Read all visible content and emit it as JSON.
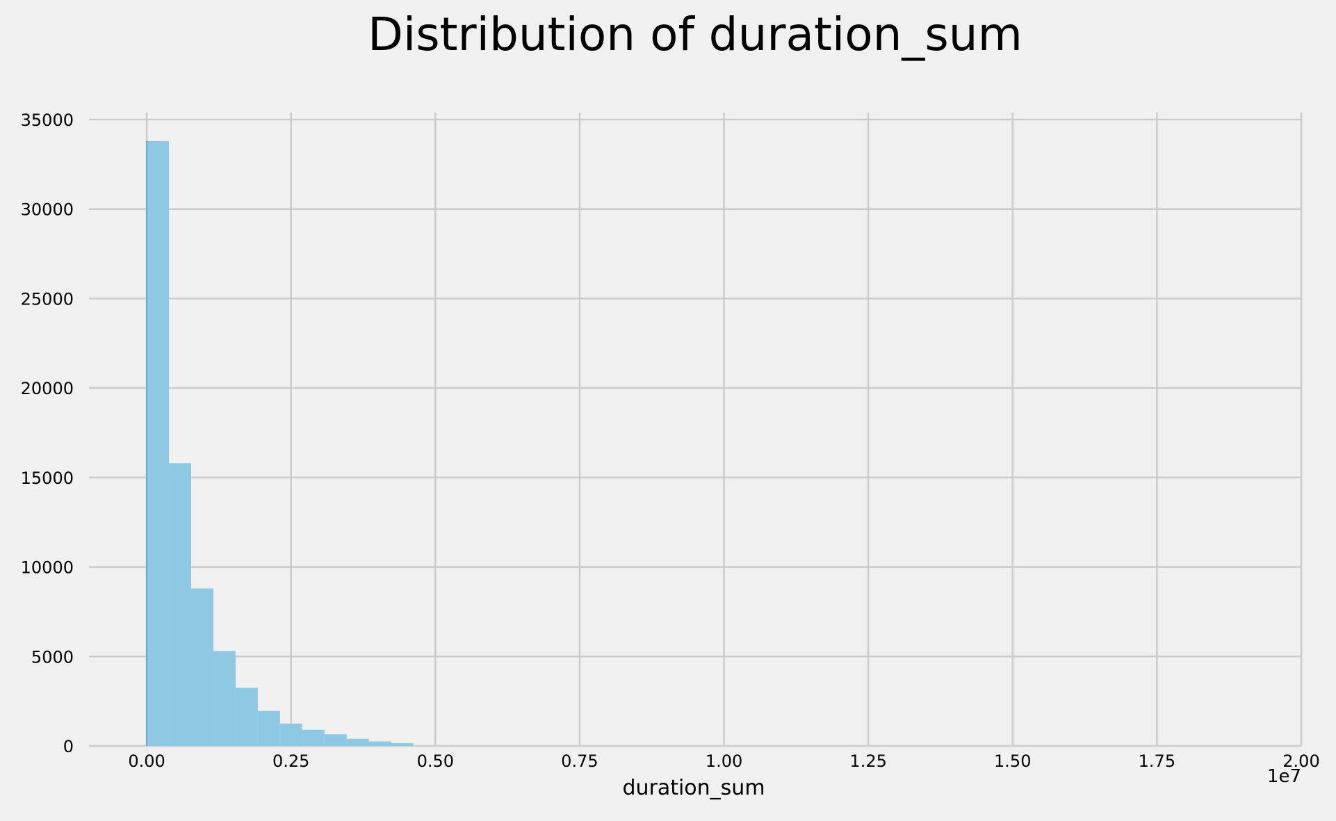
{
  "chart_data": {
    "type": "bar",
    "title": "Distribution of duration_sum",
    "xlabel": "duration_sum",
    "ylabel": "",
    "x_offset_label": "1e7",
    "xlim": [
      -0.1,
      2.0
    ],
    "ylim": [
      0,
      35000
    ],
    "x_ticks": [
      {
        "value": 0.0,
        "label": "0.00"
      },
      {
        "value": 0.25,
        "label": "0.25"
      },
      {
        "value": 0.5,
        "label": "0.50"
      },
      {
        "value": 0.75,
        "label": "0.75"
      },
      {
        "value": 1.0,
        "label": "1.00"
      },
      {
        "value": 1.25,
        "label": "1.25"
      },
      {
        "value": 1.5,
        "label": "1.50"
      },
      {
        "value": 1.75,
        "label": "1.75"
      },
      {
        "value": 2.0,
        "label": "2.00"
      }
    ],
    "y_ticks": [
      {
        "value": 0,
        "label": "0"
      },
      {
        "value": 5000,
        "label": "5000"
      },
      {
        "value": 10000,
        "label": "10000"
      },
      {
        "value": 15000,
        "label": "15000"
      },
      {
        "value": 20000,
        "label": "20000"
      },
      {
        "value": 25000,
        "label": "25000"
      },
      {
        "value": 30000,
        "label": "30000"
      },
      {
        "value": 35000,
        "label": "35000"
      }
    ],
    "grid": true,
    "bar_color": "#8fc8e5",
    "bar_edge_color": "#6aa6c8",
    "background_color": "#f0f0f0",
    "grid_color": "#cbcbcb",
    "bin_width": 0.0385,
    "bins": [
      {
        "x0": 0.0,
        "count": 33800
      },
      {
        "x0": 0.0385,
        "count": 15800
      },
      {
        "x0": 0.077,
        "count": 8800
      },
      {
        "x0": 0.1155,
        "count": 5300
      },
      {
        "x0": 0.154,
        "count": 3250
      },
      {
        "x0": 0.1925,
        "count": 1950
      },
      {
        "x0": 0.231,
        "count": 1250
      },
      {
        "x0": 0.2695,
        "count": 900
      },
      {
        "x0": 0.308,
        "count": 650
      },
      {
        "x0": 0.3465,
        "count": 400
      },
      {
        "x0": 0.385,
        "count": 250
      },
      {
        "x0": 0.4235,
        "count": 150
      }
    ]
  }
}
